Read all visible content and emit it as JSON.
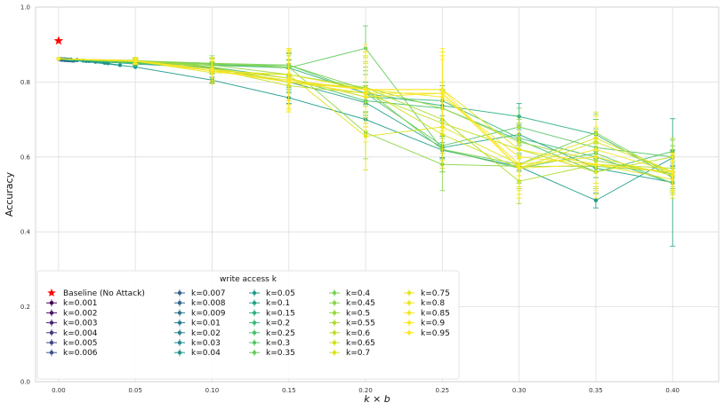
{
  "chart_data": {
    "type": "line",
    "title": "",
    "xlabel": "k × b",
    "ylabel": "Accuracy",
    "xlim": [
      -0.015,
      0.43
    ],
    "ylim": [
      0.0,
      1.0
    ],
    "x_ticks": [
      0.0,
      0.05,
      0.1,
      0.15,
      0.2,
      0.25,
      0.3,
      0.35,
      0.4
    ],
    "x_tick_labels": [
      "0.00",
      "0.05",
      "0.10",
      "0.15",
      "0.20",
      "0.25",
      "0.30",
      "0.35",
      "0.40"
    ],
    "y_ticks": [
      0.0,
      0.2,
      0.4,
      0.6,
      0.8,
      1.0
    ],
    "y_tick_labels": [
      "0.0",
      "0.2",
      "0.4",
      "0.6",
      "0.8",
      "1.0"
    ],
    "grid": true,
    "legend_title": "write access k",
    "legend_position": "bottom-left",
    "baseline": {
      "name": "Baseline (No Attack)",
      "x": 0.0,
      "y": 0.91,
      "color": "#ff0000",
      "marker": "star"
    },
    "series": [
      {
        "name": "k=0.001",
        "color": "#440154",
        "x": [
          0.0,
          0.0002,
          0.0004,
          0.0006,
          0.0008,
          0.001
        ],
        "y": [
          0.862,
          0.862,
          0.861,
          0.861,
          0.861,
          0.861
        ]
      },
      {
        "name": "k=0.002",
        "color": "#471365",
        "x": [
          0.0,
          0.0004,
          0.0008,
          0.0012,
          0.0016,
          0.002
        ],
        "y": [
          0.862,
          0.862,
          0.861,
          0.861,
          0.86,
          0.86
        ]
      },
      {
        "name": "k=0.003",
        "color": "#482475",
        "x": [
          0.0,
          0.0006,
          0.0012,
          0.0018,
          0.0024,
          0.003
        ],
        "y": [
          0.862,
          0.861,
          0.861,
          0.86,
          0.86,
          0.86
        ]
      },
      {
        "name": "k=0.004",
        "color": "#463480",
        "x": [
          0.0,
          0.0008,
          0.0016,
          0.0024,
          0.0032,
          0.004
        ],
        "y": [
          0.862,
          0.861,
          0.86,
          0.86,
          0.86,
          0.859
        ]
      },
      {
        "name": "k=0.005",
        "color": "#414487",
        "x": [
          0.0,
          0.001,
          0.002,
          0.003,
          0.004,
          0.005
        ],
        "y": [
          0.862,
          0.861,
          0.86,
          0.86,
          0.859,
          0.859
        ]
      },
      {
        "name": "k=0.006",
        "color": "#3b528b",
        "x": [
          0.0,
          0.0012,
          0.0024,
          0.0036,
          0.0048,
          0.006
        ],
        "y": [
          0.862,
          0.861,
          0.86,
          0.859,
          0.859,
          0.859
        ]
      },
      {
        "name": "k=0.007",
        "color": "#355f8d",
        "x": [
          0.0,
          0.0014,
          0.0028,
          0.0042,
          0.0056,
          0.007
        ],
        "y": [
          0.862,
          0.861,
          0.86,
          0.859,
          0.858,
          0.858
        ]
      },
      {
        "name": "k=0.008",
        "color": "#31688e",
        "x": [
          0.0,
          0.0016,
          0.0032,
          0.0048,
          0.0064,
          0.008
        ],
        "y": [
          0.862,
          0.861,
          0.86,
          0.859,
          0.858,
          0.858
        ]
      },
      {
        "name": "k=0.009",
        "color": "#2c728e",
        "x": [
          0.0,
          0.0018,
          0.0036,
          0.0054,
          0.0072,
          0.009
        ],
        "y": [
          0.862,
          0.861,
          0.86,
          0.859,
          0.858,
          0.857
        ]
      },
      {
        "name": "k=0.01",
        "color": "#287c8e",
        "x": [
          0.0,
          0.002,
          0.004,
          0.006,
          0.008,
          0.01
        ],
        "y": [
          0.862,
          0.861,
          0.86,
          0.859,
          0.858,
          0.857
        ]
      },
      {
        "name": "k=0.02",
        "color": "#26828e",
        "x": [
          0.0,
          0.004,
          0.008,
          0.012,
          0.016,
          0.02
        ],
        "y": [
          0.862,
          0.861,
          0.86,
          0.859,
          0.857,
          0.856
        ]
      },
      {
        "name": "k=0.03",
        "color": "#23898e",
        "x": [
          0.0,
          0.006,
          0.012,
          0.018,
          0.024,
          0.03
        ],
        "y": [
          0.862,
          0.86,
          0.858,
          0.856,
          0.854,
          0.851
        ]
      },
      {
        "name": "k=0.04",
        "color": "#20928c",
        "x": [
          0.0,
          0.008,
          0.016,
          0.024,
          0.032,
          0.04
        ],
        "y": [
          0.862,
          0.86,
          0.857,
          0.854,
          0.85,
          0.845
        ]
      },
      {
        "name": "k=0.05",
        "color": "#1e9b8a",
        "x": [
          0.0,
          0.05,
          0.1,
          0.15,
          0.2,
          0.25,
          0.3,
          0.35,
          0.4
        ],
        "y": [
          0.862,
          0.84,
          0.805,
          0.758,
          0.7,
          0.618,
          0.574,
          0.484,
          0.598
        ],
        "err": [
          0.005,
          0.005,
          0.008,
          0.015,
          0.02,
          0.02,
          0.01,
          0.02,
          0.02
        ]
      },
      {
        "name": "k=0.1",
        "color": "#21a585",
        "x": [
          0.0,
          0.05,
          0.1,
          0.15,
          0.2,
          0.25,
          0.3,
          0.35,
          0.4
        ],
        "y": [
          0.862,
          0.848,
          0.838,
          0.8,
          0.745,
          0.625,
          0.66,
          0.57,
          0.532
        ],
        "err": [
          0.005,
          0.006,
          0.01,
          0.02,
          0.025,
          0.03,
          0.03,
          0.025,
          0.17
        ]
      },
      {
        "name": "k=0.15",
        "color": "#2db27d",
        "x": [
          0.0,
          0.05,
          0.1,
          0.15,
          0.2,
          0.25,
          0.3,
          0.35,
          0.4
        ],
        "y": [
          0.862,
          0.852,
          0.845,
          0.838,
          0.77,
          0.737,
          0.708,
          0.66,
          0.545
        ],
        "err": [
          0.005,
          0.006,
          0.01,
          0.02,
          0.03,
          0.04,
          0.035,
          0.04,
          0.03
        ]
      },
      {
        "name": "k=0.2",
        "color": "#3aba76",
        "x": [
          0.0,
          0.05,
          0.1,
          0.15,
          0.2,
          0.25,
          0.3,
          0.35,
          0.4
        ],
        "y": [
          0.862,
          0.85,
          0.84,
          0.81,
          0.76,
          0.75,
          0.65,
          0.6,
          0.53
        ],
        "err": [
          0.005,
          0.006,
          0.012,
          0.025,
          0.04,
          0.04,
          0.04,
          0.04,
          0.03
        ]
      },
      {
        "name": "k=0.25",
        "color": "#48c16e",
        "x": [
          0.0,
          0.05,
          0.1,
          0.15,
          0.2,
          0.25,
          0.3,
          0.35,
          0.4
        ],
        "y": [
          0.862,
          0.852,
          0.835,
          0.81,
          0.75,
          0.73,
          0.645,
          0.56,
          0.615
        ],
        "err": [
          0.005,
          0.007,
          0.012,
          0.03,
          0.04,
          0.05,
          0.04,
          0.04,
          0.03
        ]
      },
      {
        "name": "k=0.3",
        "color": "#56c667",
        "x": [
          0.0,
          0.05,
          0.1,
          0.15,
          0.2,
          0.25,
          0.3,
          0.35,
          0.4
        ],
        "y": [
          0.862,
          0.85,
          0.845,
          0.845,
          0.77,
          0.63,
          0.68,
          0.625,
          0.6
        ],
        "err": [
          0.005,
          0.007,
          0.015,
          0.03,
          0.05,
          0.05,
          0.05,
          0.05,
          0.03
        ]
      },
      {
        "name": "k=0.35",
        "color": "#66cc5d",
        "x": [
          0.0,
          0.05,
          0.1,
          0.15,
          0.2,
          0.25,
          0.3,
          0.35,
          0.4
        ],
        "y": [
          0.862,
          0.855,
          0.848,
          0.838,
          0.89,
          0.62,
          0.57,
          0.61,
          0.53
        ],
        "err": [
          0.005,
          0.007,
          0.015,
          0.04,
          0.06,
          0.06,
          0.05,
          0.05,
          0.03
        ]
      },
      {
        "name": "k=0.4",
        "color": "#77d153",
        "x": [
          0.0,
          0.05,
          0.1,
          0.15,
          0.2,
          0.25,
          0.3,
          0.35,
          0.4
        ],
        "y": [
          0.862,
          0.855,
          0.85,
          0.845,
          0.78,
          0.62,
          0.58,
          0.665,
          0.55
        ],
        "err": [
          0.005,
          0.007,
          0.015,
          0.04,
          0.06,
          0.06,
          0.05,
          0.05,
          0.04
        ]
      },
      {
        "name": "k=0.45",
        "color": "#88d548",
        "x": [
          0.0,
          0.05,
          0.1,
          0.15,
          0.2,
          0.25,
          0.3,
          0.35,
          0.4
        ],
        "y": [
          0.862,
          0.857,
          0.85,
          0.84,
          0.665,
          0.58,
          0.575,
          0.575,
          0.56
        ],
        "err": [
          0.005,
          0.008,
          0.02,
          0.05,
          0.07,
          0.07,
          0.06,
          0.06,
          0.05
        ]
      },
      {
        "name": "k=0.5",
        "color": "#9ad93c",
        "x": [
          0.0,
          0.05,
          0.1,
          0.15,
          0.2,
          0.25,
          0.3,
          0.35,
          0.4
        ],
        "y": [
          0.862,
          0.855,
          0.845,
          0.82,
          0.785,
          0.73,
          0.64,
          0.59,
          0.555
        ],
        "err": [
          0.005,
          0.008,
          0.02,
          0.05,
          0.07,
          0.07,
          0.06,
          0.06,
          0.05
        ]
      },
      {
        "name": "k=0.55",
        "color": "#acdc30",
        "x": [
          0.0,
          0.05,
          0.1,
          0.15,
          0.2,
          0.25,
          0.3,
          0.35,
          0.4
        ],
        "y": [
          0.862,
          0.858,
          0.84,
          0.8,
          0.785,
          0.7,
          0.535,
          0.58,
          0.57
        ],
        "err": [
          0.005,
          0.008,
          0.02,
          0.06,
          0.08,
          0.08,
          0.06,
          0.06,
          0.05
        ]
      },
      {
        "name": "k=0.6",
        "color": "#bddf26",
        "x": [
          0.0,
          0.05,
          0.1,
          0.15,
          0.2,
          0.25,
          0.3,
          0.35,
          0.4
        ],
        "y": [
          0.862,
          0.855,
          0.835,
          0.79,
          0.77,
          0.69,
          0.62,
          0.56,
          0.6
        ],
        "err": [
          0.005,
          0.008,
          0.025,
          0.06,
          0.08,
          0.08,
          0.06,
          0.06,
          0.05
        ]
      },
      {
        "name": "k=0.65",
        "color": "#cee11d",
        "x": [
          0.0,
          0.05,
          0.1,
          0.15,
          0.2,
          0.25,
          0.3,
          0.35,
          0.4
        ],
        "y": [
          0.862,
          0.855,
          0.83,
          0.8,
          0.78,
          0.66,
          0.57,
          0.64,
          0.56
        ],
        "err": [
          0.005,
          0.008,
          0.025,
          0.06,
          0.09,
          0.09,
          0.07,
          0.07,
          0.05
        ]
      },
      {
        "name": "k=0.7",
        "color": "#dde318",
        "x": [
          0.0,
          0.05,
          0.1,
          0.15,
          0.2,
          0.25,
          0.3,
          0.35,
          0.4
        ],
        "y": [
          0.862,
          0.856,
          0.825,
          0.82,
          0.655,
          0.68,
          0.58,
          0.65,
          0.56
        ],
        "err": [
          0.005,
          0.008,
          0.03,
          0.07,
          0.09,
          0.09,
          0.07,
          0.07,
          0.05
        ]
      },
      {
        "name": "k=0.75",
        "color": "#e7e419",
        "x": [
          0.0,
          0.05,
          0.1,
          0.15,
          0.2,
          0.25,
          0.3,
          0.35,
          0.4
        ],
        "y": [
          0.862,
          0.857,
          0.83,
          0.82,
          0.78,
          0.78,
          0.62,
          0.58,
          0.54
        ],
        "err": [
          0.005,
          0.008,
          0.03,
          0.07,
          0.1,
          0.1,
          0.07,
          0.07,
          0.05
        ]
      },
      {
        "name": "k=0.8",
        "color": "#f0e51d",
        "x": [
          0.0,
          0.05,
          0.1,
          0.15,
          0.2,
          0.25,
          0.3,
          0.35,
          0.4
        ],
        "y": [
          0.862,
          0.855,
          0.83,
          0.8,
          0.77,
          0.77,
          0.58,
          0.6,
          0.55
        ],
        "err": [
          0.005,
          0.008,
          0.03,
          0.08,
          0.1,
          0.1,
          0.08,
          0.08,
          0.05
        ]
      },
      {
        "name": "k=0.85",
        "color": "#f5e61f",
        "x": [
          0.0,
          0.05,
          0.1,
          0.15,
          0.2,
          0.25,
          0.3,
          0.35,
          0.4
        ],
        "y": [
          0.862,
          0.856,
          0.83,
          0.805,
          0.78,
          0.76,
          0.6,
          0.58,
          0.56
        ],
        "err": [
          0.005,
          0.008,
          0.03,
          0.08,
          0.1,
          0.1,
          0.08,
          0.08,
          0.05
        ]
      },
      {
        "name": "k=0.9",
        "color": "#f9e722",
        "x": [
          0.0,
          0.05,
          0.1,
          0.15,
          0.2,
          0.25,
          0.3,
          0.35,
          0.4
        ],
        "y": [
          0.862,
          0.856,
          0.835,
          0.81,
          0.76,
          0.77,
          0.57,
          0.62,
          0.56
        ],
        "err": [
          0.005,
          0.008,
          0.03,
          0.08,
          0.12,
          0.1,
          0.08,
          0.09,
          0.05
        ]
      },
      {
        "name": "k=0.95",
        "color": "#fde725",
        "x": [
          0.0,
          0.05,
          0.1,
          0.15,
          0.2,
          0.25,
          0.3,
          0.35,
          0.4
        ],
        "y": [
          0.862,
          0.857,
          0.83,
          0.8,
          0.78,
          0.78,
          0.57,
          0.58,
          0.56
        ],
        "err": [
          0.005,
          0.008,
          0.03,
          0.08,
          0.12,
          0.11,
          0.08,
          0.09,
          0.05
        ]
      }
    ]
  }
}
